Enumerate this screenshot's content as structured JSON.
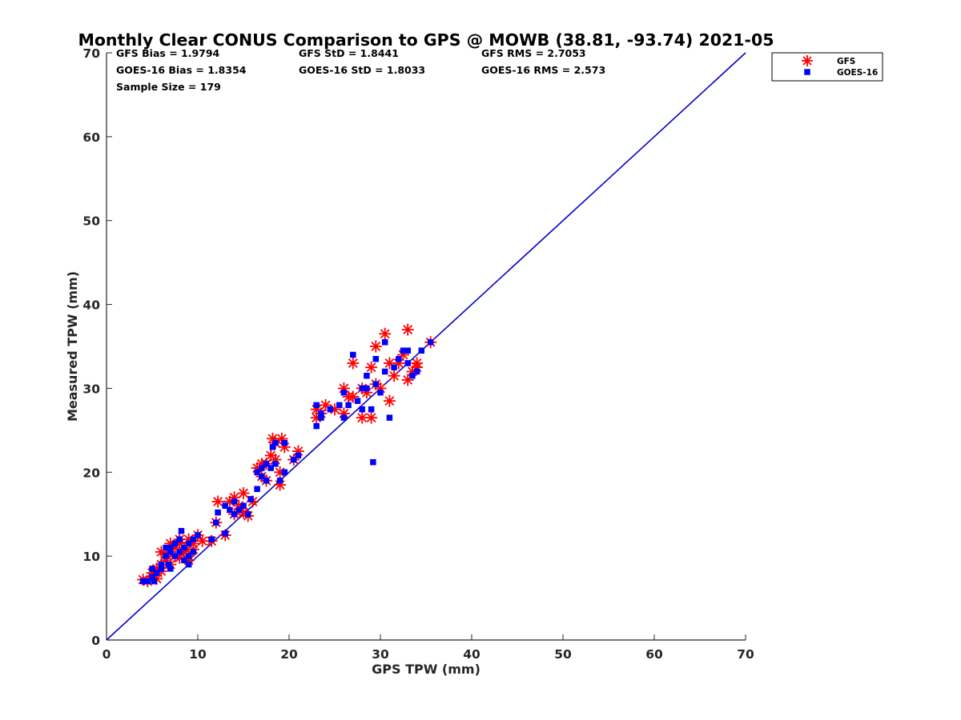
{
  "chart_data": {
    "type": "scatter",
    "title": "Monthly Clear CONUS Comparison to GPS @ MOWB (38.81, -93.74) 2021-05",
    "xlabel": "GPS TPW (mm)",
    "ylabel": "Measured TPW (mm)",
    "xlim": [
      0,
      70
    ],
    "ylim": [
      0,
      70
    ],
    "xticks": [
      0,
      10,
      20,
      30,
      40,
      50,
      60,
      70
    ],
    "yticks": [
      0,
      10,
      20,
      30,
      40,
      50,
      60,
      70
    ],
    "tick_labels_x": [
      "0",
      "10",
      "20",
      "30",
      "40",
      "50",
      "60",
      "70"
    ],
    "tick_labels_y": [
      "0",
      "10",
      "20",
      "30",
      "40",
      "50",
      "60",
      "70"
    ],
    "grid": false,
    "legend_position": "top-right",
    "stats": [
      [
        "GFS Bias = 1.9794",
        "GFS StD = 1.8441",
        "GFS RMS = 2.7053"
      ],
      [
        "GOES-16 Bias = 1.8354",
        "GOES-16 StD = 1.8033",
        "GOES-16 RMS = 2.573"
      ],
      [
        "Sample Size = 179",
        "",
        ""
      ]
    ],
    "reference_line": {
      "x": [
        0,
        70
      ],
      "y": [
        0,
        70
      ],
      "color": "#0000CC"
    },
    "series": [
      {
        "name": "GFS",
        "marker": "asterisk",
        "color": "#FF0000",
        "points": [
          [
            4.0,
            7.2
          ],
          [
            4.5,
            7.0
          ],
          [
            5.0,
            7.5
          ],
          [
            5.5,
            7.3
          ],
          [
            5.0,
            8.0
          ],
          [
            5.5,
            8.5
          ],
          [
            6.0,
            9.0
          ],
          [
            6.0,
            8.2
          ],
          [
            6.5,
            9.5
          ],
          [
            6.5,
            10.2
          ],
          [
            7.0,
            10.5
          ],
          [
            7.0,
            9.0
          ],
          [
            7.5,
            11.0
          ],
          [
            7.5,
            10.0
          ],
          [
            8.0,
            11.5
          ],
          [
            8.0,
            12.0
          ],
          [
            8.5,
            11.0
          ],
          [
            8.5,
            10.5
          ],
          [
            9.0,
            10.0
          ],
          [
            9.0,
            12.0
          ],
          [
            9.5,
            11.5
          ],
          [
            9.5,
            10.8
          ],
          [
            10.0,
            12.5
          ],
          [
            9.0,
            9.5
          ],
          [
            7.0,
            11.5
          ],
          [
            6.0,
            10.5
          ],
          [
            8.0,
            9.8
          ],
          [
            10.5,
            11.8
          ],
          [
            11.5,
            11.8
          ],
          [
            12.0,
            14.0
          ],
          [
            12.2,
            16.5
          ],
          [
            13.0,
            12.5
          ],
          [
            13.5,
            16.5
          ],
          [
            14.0,
            17.0
          ],
          [
            14.0,
            15.0
          ],
          [
            14.5,
            16.0
          ],
          [
            15.0,
            17.5
          ],
          [
            15.0,
            15.2
          ],
          [
            15.5,
            14.8
          ],
          [
            16.0,
            16.5
          ],
          [
            16.5,
            20.5
          ],
          [
            17.0,
            21.0
          ],
          [
            17.0,
            19.5
          ],
          [
            17.5,
            21.0
          ],
          [
            17.5,
            19.0
          ],
          [
            18.0,
            22.0
          ],
          [
            18.2,
            24.0
          ],
          [
            18.5,
            23.5
          ],
          [
            18.5,
            21.5
          ],
          [
            19.0,
            18.5
          ],
          [
            19.0,
            20.0
          ],
          [
            19.2,
            24.0
          ],
          [
            19.5,
            23.0
          ],
          [
            20.5,
            21.5
          ],
          [
            21.0,
            22.5
          ],
          [
            23.0,
            27.5
          ],
          [
            23.0,
            26.5
          ],
          [
            23.5,
            27.0
          ],
          [
            24.0,
            28.0
          ],
          [
            25.0,
            27.5
          ],
          [
            26.0,
            30.0
          ],
          [
            26.0,
            27.0
          ],
          [
            26.5,
            29.0
          ],
          [
            27.0,
            33.0
          ],
          [
            27.0,
            29.0
          ],
          [
            28.0,
            26.5
          ],
          [
            28.0,
            30.0
          ],
          [
            28.5,
            29.5
          ],
          [
            29.0,
            32.5
          ],
          [
            29.0,
            26.5
          ],
          [
            29.5,
            35.0
          ],
          [
            29.5,
            30.5
          ],
          [
            30.0,
            30.0
          ],
          [
            30.5,
            36.5
          ],
          [
            31.0,
            33.0
          ],
          [
            31.0,
            28.5
          ],
          [
            31.5,
            31.5
          ],
          [
            32.0,
            33.0
          ],
          [
            32.5,
            34.0
          ],
          [
            33.0,
            31.0
          ],
          [
            33.0,
            37.0
          ],
          [
            33.5,
            32.0
          ],
          [
            34.0,
            33.0
          ],
          [
            34.0,
            32.5
          ],
          [
            35.5,
            35.5
          ]
        ]
      },
      {
        "name": "GOES-16",
        "marker": "square",
        "color": "#0000FF",
        "points": [
          [
            4.0,
            7.0
          ],
          [
            4.5,
            7.0
          ],
          [
            5.0,
            7.5
          ],
          [
            5.2,
            7.0
          ],
          [
            5.5,
            8.0
          ],
          [
            5.0,
            8.5
          ],
          [
            6.0,
            9.0
          ],
          [
            6.0,
            8.5
          ],
          [
            6.5,
            10.0
          ],
          [
            6.8,
            9.0
          ],
          [
            7.0,
            10.5
          ],
          [
            7.0,
            11.0
          ],
          [
            7.5,
            10.0
          ],
          [
            7.5,
            11.5
          ],
          [
            8.0,
            10.5
          ],
          [
            8.2,
            13.0
          ],
          [
            8.5,
            9.5
          ],
          [
            8.5,
            11.0
          ],
          [
            9.0,
            10.0
          ],
          [
            9.0,
            11.5
          ],
          [
            9.5,
            12.0
          ],
          [
            9.5,
            10.5
          ],
          [
            10.0,
            12.5
          ],
          [
            7.0,
            8.5
          ],
          [
            6.5,
            11.0
          ],
          [
            8.0,
            12.0
          ],
          [
            9.0,
            9.0
          ],
          [
            11.5,
            12.0
          ],
          [
            12.0,
            14.0
          ],
          [
            12.2,
            15.2
          ],
          [
            13.0,
            12.7
          ],
          [
            13.0,
            16.0
          ],
          [
            13.5,
            15.5
          ],
          [
            14.0,
            15.0
          ],
          [
            14.5,
            15.5
          ],
          [
            14.0,
            16.5
          ],
          [
            15.0,
            16.0
          ],
          [
            15.5,
            15.0
          ],
          [
            15.8,
            16.8
          ],
          [
            16.5,
            18.0
          ],
          [
            16.5,
            20.0
          ],
          [
            17.0,
            20.5
          ],
          [
            17.0,
            19.5
          ],
          [
            17.5,
            21.0
          ],
          [
            17.5,
            19.0
          ],
          [
            18.0,
            20.5
          ],
          [
            18.2,
            23.0
          ],
          [
            18.5,
            23.5
          ],
          [
            18.5,
            21.0
          ],
          [
            19.0,
            19.0
          ],
          [
            19.5,
            20.0
          ],
          [
            19.5,
            23.5
          ],
          [
            20.5,
            21.5
          ],
          [
            21.0,
            22.0
          ],
          [
            23.0,
            28.0
          ],
          [
            23.0,
            25.5
          ],
          [
            23.5,
            27.0
          ],
          [
            23.5,
            26.5
          ],
          [
            24.5,
            27.5
          ],
          [
            25.5,
            28.0
          ],
          [
            26.0,
            26.5
          ],
          [
            26.0,
            29.5
          ],
          [
            26.5,
            28.0
          ],
          [
            27.0,
            34.0
          ],
          [
            27.5,
            28.5
          ],
          [
            28.0,
            30.0
          ],
          [
            28.0,
            27.5
          ],
          [
            28.5,
            30.0
          ],
          [
            28.5,
            31.5
          ],
          [
            29.0,
            27.5
          ],
          [
            29.2,
            21.2
          ],
          [
            29.5,
            30.5
          ],
          [
            29.5,
            33.5
          ],
          [
            30.0,
            29.5
          ],
          [
            30.5,
            35.5
          ],
          [
            30.5,
            32.0
          ],
          [
            31.0,
            26.5
          ],
          [
            31.5,
            32.5
          ],
          [
            32.0,
            33.5
          ],
          [
            32.5,
            34.5
          ],
          [
            33.0,
            33.0
          ],
          [
            33.0,
            34.5
          ],
          [
            33.5,
            31.5
          ],
          [
            34.0,
            32.0
          ],
          [
            34.5,
            34.5
          ],
          [
            35.5,
            35.5
          ]
        ]
      }
    ]
  }
}
